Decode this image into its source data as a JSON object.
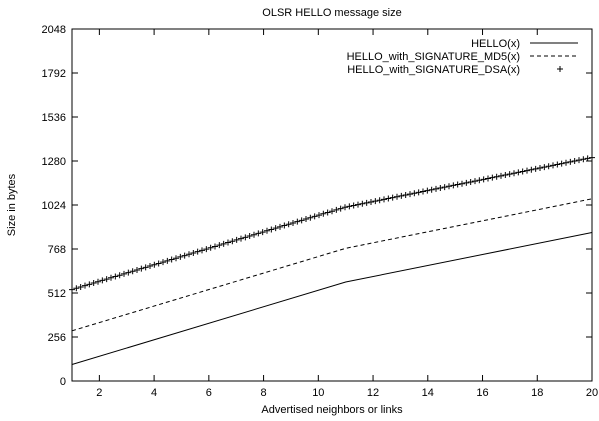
{
  "chart_data": {
    "type": "line",
    "title": "OLSR HELLO message size",
    "xlabel": "Advertised neighbors or links",
    "ylabel": "Size in bytes",
    "xlim": [
      1,
      20
    ],
    "ylim": [
      0,
      2048
    ],
    "xticks": [
      2,
      4,
      6,
      8,
      10,
      12,
      14,
      16,
      18,
      20
    ],
    "yticks": [
      0,
      256,
      512,
      768,
      1024,
      1280,
      1536,
      1792,
      2048
    ],
    "grid": false,
    "legend_position": "top-right",
    "series": [
      {
        "name": "HELLO(x)",
        "style": "solid",
        "x": [
          1,
          11,
          20
        ],
        "y": [
          96,
          576,
          864
        ]
      },
      {
        "name": "HELLO_with_SIGNATURE_MD5(x)",
        "style": "dashed",
        "x": [
          1,
          11,
          20
        ],
        "y": [
          292,
          772,
          1060
        ]
      },
      {
        "name": "HELLO_with_SIGNATURE_DSA(x)",
        "style": "plus",
        "x": [
          1,
          11,
          20
        ],
        "y": [
          532,
          1012,
          1300
        ]
      }
    ]
  }
}
